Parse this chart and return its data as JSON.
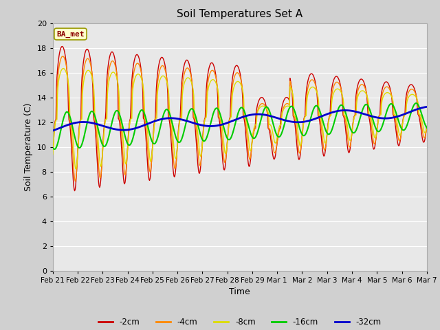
{
  "title": "Soil Temperatures Set A",
  "xlabel": "Time",
  "ylabel": "Soil Temperature (C)",
  "annotation": "BA_met",
  "ylim": [
    0,
    20
  ],
  "yticks": [
    0,
    2,
    4,
    6,
    8,
    10,
    12,
    14,
    16,
    18,
    20
  ],
  "x_labels": [
    "Feb 21",
    "Feb 22",
    "Feb 23",
    "Feb 24",
    "Feb 25",
    "Feb 26",
    "Feb 27",
    "Feb 28",
    "Feb 29",
    "Mar 1",
    "Mar 2",
    "Mar 3",
    "Mar 4",
    "Mar 5",
    "Mar 6",
    "Mar 7"
  ],
  "colors": {
    "-2cm": "#cc0000",
    "-4cm": "#ff8800",
    "-8cm": "#dddd00",
    "-16cm": "#00cc00",
    "-32cm": "#0000cc"
  },
  "legend_order": [
    "-2cm",
    "-4cm",
    "-8cm",
    "-16cm",
    "-32cm"
  ],
  "bg_color": "#e8e8e8",
  "fig_bg_color": "#d0d0d0"
}
